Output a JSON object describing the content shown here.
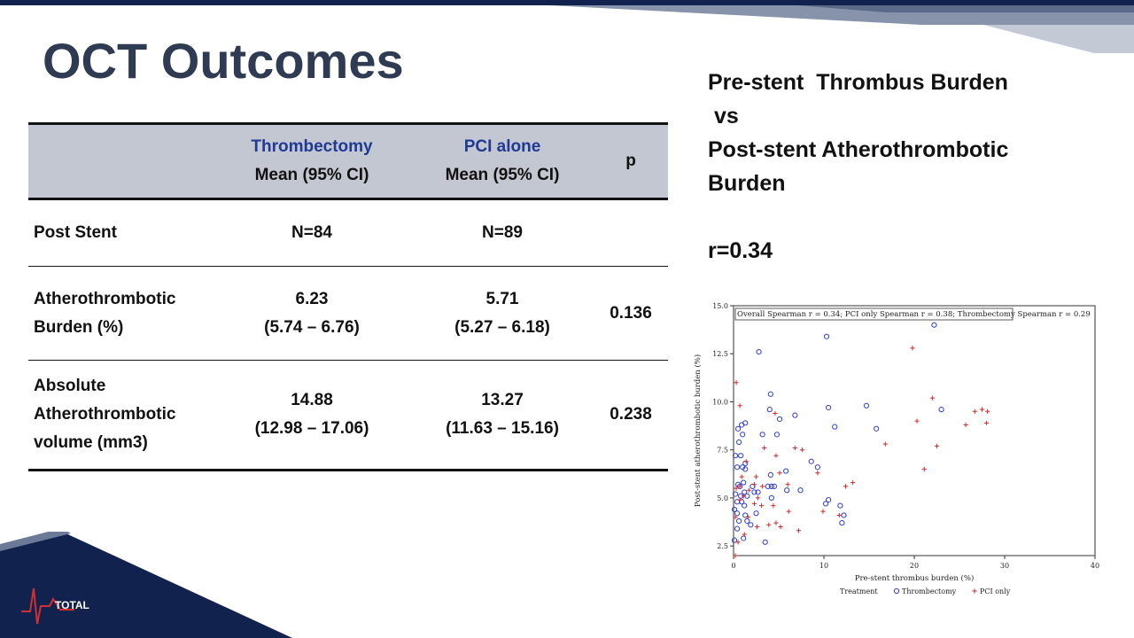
{
  "title": "OCT Outcomes",
  "table": {
    "headers": [
      {
        "group": "",
        "sub": ""
      },
      {
        "group": "Thrombectomy",
        "sub": "Mean (95% CI)"
      },
      {
        "group": "PCI alone",
        "sub": "Mean (95% CI)"
      },
      {
        "group": "",
        "sub": "p"
      }
    ],
    "rows": [
      {
        "label": "Post Stent",
        "thrombectomy": "N=84",
        "pci": "N=89",
        "p": ""
      },
      {
        "label": "Atherothrombotic\nBurden (%)",
        "thrombectomy": "6.23\n(5.74 – 6.76)",
        "pci": "5.71\n(5.27 – 6.18)",
        "p": "0.136"
      },
      {
        "label": "Absolute\nAtherothrombotic\nvolume (mm3)",
        "thrombectomy": "14.88\n(12.98 – 17.06)",
        "pci": "13.27\n(11.63 – 15.16)",
        "p": "0.238"
      }
    ]
  },
  "right_panel": {
    "line1": "Pre-stent  Thrombus Burden",
    "line2": " vs",
    "line3": "Post-stent Atherothrombotic",
    "line4": "Burden",
    "correlation": "r=0.34"
  },
  "logo_text": "TOTAL",
  "colors": {
    "navy": "#12224f",
    "title": "#2f3b52",
    "header_bg": "#c3c7d2",
    "thrombectomy": "#2e3fd0",
    "pci_only": "#d22b2b",
    "ecg": "#d23030"
  },
  "chart_data": {
    "type": "scatter",
    "xlabel": "Pre-stent thrombus burden (%)",
    "ylabel": "Post-stent atherothrombotic burden (%)",
    "xlim": [
      0,
      40
    ],
    "ylim": [
      2,
      15
    ],
    "xticks": [
      "0",
      "10",
      "20",
      "30",
      "40"
    ],
    "yticks": [
      "2.5",
      "5.0",
      "7.5",
      "10.0",
      "12.5",
      "15.0"
    ],
    "annotation": "Overall Spearman r = 0.34; PCI only Spearman r = 0.38; Thrombectomy Spearman r = 0.29",
    "legend_title": "Treatment",
    "legend_position": "bottom",
    "series": [
      {
        "name": "Thrombectomy",
        "marker": "circle",
        "points": [
          [
            22.2,
            14.0
          ],
          [
            10.3,
            13.4
          ],
          [
            2.8,
            12.6
          ],
          [
            4.1,
            10.4
          ],
          [
            14.7,
            9.8
          ],
          [
            10.5,
            9.7
          ],
          [
            23.0,
            9.6
          ],
          [
            4.0,
            9.6
          ],
          [
            6.8,
            9.3
          ],
          [
            5.1,
            9.1
          ],
          [
            1.3,
            8.9
          ],
          [
            0.9,
            8.8
          ],
          [
            0.5,
            8.6
          ],
          [
            11.2,
            8.7
          ],
          [
            15.8,
            8.6
          ],
          [
            1.0,
            8.3
          ],
          [
            3.2,
            8.3
          ],
          [
            4.8,
            8.3
          ],
          [
            0.6,
            7.9
          ],
          [
            0.2,
            7.2
          ],
          [
            0.8,
            7.2
          ],
          [
            1.3,
            6.8
          ],
          [
            8.6,
            6.9
          ],
          [
            0.4,
            6.6
          ],
          [
            1.0,
            6.6
          ],
          [
            9.3,
            6.6
          ],
          [
            5.8,
            6.4
          ],
          [
            4.1,
            6.2
          ],
          [
            1.3,
            6.5
          ],
          [
            1.1,
            5.8
          ],
          [
            0.5,
            5.7
          ],
          [
            0.7,
            5.6
          ],
          [
            2.1,
            5.6
          ],
          [
            4.5,
            5.6
          ],
          [
            3.8,
            5.6
          ],
          [
            4.2,
            5.6
          ],
          [
            0.2,
            5.2
          ],
          [
            0.8,
            5.1
          ],
          [
            1.5,
            5.1
          ],
          [
            1.2,
            5.3
          ],
          [
            2.3,
            5.3
          ],
          [
            2.7,
            5.3
          ],
          [
            7.4,
            5.4
          ],
          [
            5.9,
            5.4
          ],
          [
            0.4,
            4.8
          ],
          [
            0.9,
            4.8
          ],
          [
            1.2,
            4.6
          ],
          [
            0.1,
            4.4
          ],
          [
            4.2,
            5.0
          ],
          [
            10.2,
            4.7
          ],
          [
            10.5,
            4.9
          ],
          [
            11.8,
            4.6
          ],
          [
            2.5,
            4.2
          ],
          [
            0.4,
            4.2
          ],
          [
            1.3,
            4.1
          ],
          [
            12.2,
            4.1
          ],
          [
            0.6,
            3.8
          ],
          [
            1.5,
            3.8
          ],
          [
            1.9,
            3.6
          ],
          [
            12.0,
            3.7
          ],
          [
            0.4,
            3.4
          ],
          [
            0.1,
            2.8
          ],
          [
            1.1,
            2.9
          ],
          [
            3.5,
            2.7
          ]
        ]
      },
      {
        "name": "PCI only",
        "marker": "plus",
        "points": [
          [
            0.3,
            11.0
          ],
          [
            0.7,
            9.8
          ],
          [
            4.6,
            9.4
          ],
          [
            19.8,
            12.8
          ],
          [
            20.3,
            9.0
          ],
          [
            22.0,
            10.2
          ],
          [
            26.7,
            9.5
          ],
          [
            27.5,
            9.6
          ],
          [
            28.1,
            9.5
          ],
          [
            28.0,
            8.9
          ],
          [
            25.7,
            8.8
          ],
          [
            22.5,
            7.7
          ],
          [
            16.8,
            7.8
          ],
          [
            21.1,
            6.5
          ],
          [
            6.8,
            7.6
          ],
          [
            7.6,
            7.5
          ],
          [
            3.4,
            7.6
          ],
          [
            4.7,
            7.2
          ],
          [
            1.4,
            6.9
          ],
          [
            9.3,
            6.3
          ],
          [
            5.1,
            6.3
          ],
          [
            2.5,
            6.1
          ],
          [
            0.9,
            6.1
          ],
          [
            2.3,
            5.7
          ],
          [
            3.2,
            5.6
          ],
          [
            6.0,
            5.7
          ],
          [
            13.2,
            5.8
          ],
          [
            12.4,
            5.6
          ],
          [
            0.7,
            5.6
          ],
          [
            1.7,
            5.4
          ],
          [
            2.7,
            5.0
          ],
          [
            0.3,
            5.5
          ],
          [
            1.1,
            5.1
          ],
          [
            0.7,
            4.9
          ],
          [
            2.3,
            4.7
          ],
          [
            3.1,
            4.6
          ],
          [
            4.4,
            4.6
          ],
          [
            6.1,
            4.3
          ],
          [
            9.9,
            4.3
          ],
          [
            11.7,
            4.1
          ],
          [
            0.2,
            4.0
          ],
          [
            1.6,
            4.0
          ],
          [
            4.7,
            3.7
          ],
          [
            3.9,
            3.6
          ],
          [
            5.2,
            3.5
          ],
          [
            2.6,
            3.5
          ],
          [
            7.2,
            3.3
          ],
          [
            1.2,
            3.1
          ],
          [
            0.5,
            2.7
          ],
          [
            0.2,
            2.0
          ]
        ]
      }
    ]
  }
}
